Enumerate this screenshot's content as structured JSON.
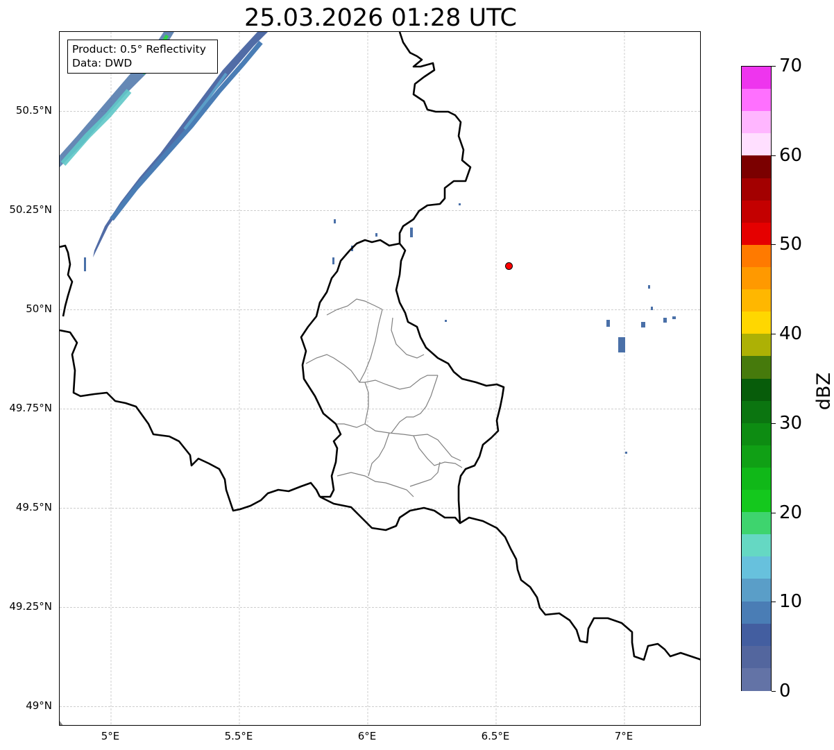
{
  "title": "25.03.2026 01:28 UTC",
  "info_box": {
    "product": "Product: 0.5° Reflectivity",
    "data": "Data: DWD"
  },
  "axes": {
    "lat_ticks": [
      {
        "value": 50.5,
        "label": "50.5°N"
      },
      {
        "value": 50.25,
        "label": "50.25°N"
      },
      {
        "value": 50.0,
        "label": "50°N"
      },
      {
        "value": 49.75,
        "label": "49.75°N"
      },
      {
        "value": 49.5,
        "label": "49.5°N"
      },
      {
        "value": 49.25,
        "label": "49.25°N"
      },
      {
        "value": 49.0,
        "label": "49°N"
      }
    ],
    "lon_ticks": [
      {
        "value": 5.0,
        "label": "5°E"
      },
      {
        "value": 5.5,
        "label": "5.5°E"
      },
      {
        "value": 6.0,
        "label": "6°E"
      },
      {
        "value": 6.5,
        "label": "6.5°E"
      },
      {
        "value": 7.0,
        "label": "7°E"
      }
    ],
    "lon_range": [
      4.8,
      7.3
    ],
    "lat_range": [
      48.95,
      50.7
    ],
    "grid": true
  },
  "radar_site": {
    "lon": 6.55,
    "lat": 50.11,
    "color": "#ff0000"
  },
  "colorbar": {
    "unit": "dBZ",
    "min": 0,
    "max": 70,
    "tick_labels": [
      {
        "value": 0,
        "label": "0"
      },
      {
        "value": 10,
        "label": "10"
      },
      {
        "value": 20,
        "label": "20"
      },
      {
        "value": 30,
        "label": "30"
      },
      {
        "value": 40,
        "label": "40"
      },
      {
        "value": 50,
        "label": "50"
      },
      {
        "value": 60,
        "label": "60"
      },
      {
        "value": 70,
        "label": "70"
      }
    ],
    "colors": [
      "#6373a6",
      "#53669e",
      "#435ea0",
      "#4a7db5",
      "#5a9ec8",
      "#67c1dd",
      "#65d8c3",
      "#3ed46e",
      "#14c81d",
      "#10b818",
      "#10a015",
      "#0d8c12",
      "#0b7510",
      "#075c0a",
      "#467a0c",
      "#adb105",
      "#ffd700",
      "#ffb700",
      "#ff9900",
      "#ff7a00",
      "#e50000",
      "#c40000",
      "#a30000",
      "#7b0000",
      "#ffdfff",
      "#ffb6ff",
      "#ff70ff",
      "#ee35ee"
    ]
  },
  "echo_colors": {
    "weak": "#4a70a8",
    "light": "#5b9bd0",
    "cyan": "#5fc8c8",
    "green": "#2ed24a"
  }
}
